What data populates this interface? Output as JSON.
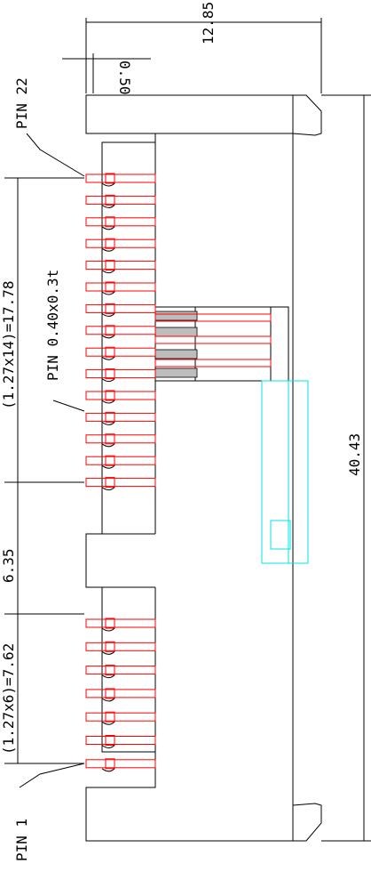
{
  "dimensions": {
    "overall_height": "40.43",
    "overall_width": "12.85",
    "pin_offset": "0.50",
    "upper_pitch_span": "(1.27x14)=17.78",
    "gap": "6.35",
    "lower_pitch_span": "(1.27x6)=7.62"
  },
  "labels": {
    "pin_top": "PIN 22",
    "pin_size": "PIN 0.40x0.3t",
    "pin_bottom": "PIN 1"
  },
  "colors": {
    "outline": "#000000",
    "pins": "#ff0000",
    "latch": "#00e5ee"
  }
}
